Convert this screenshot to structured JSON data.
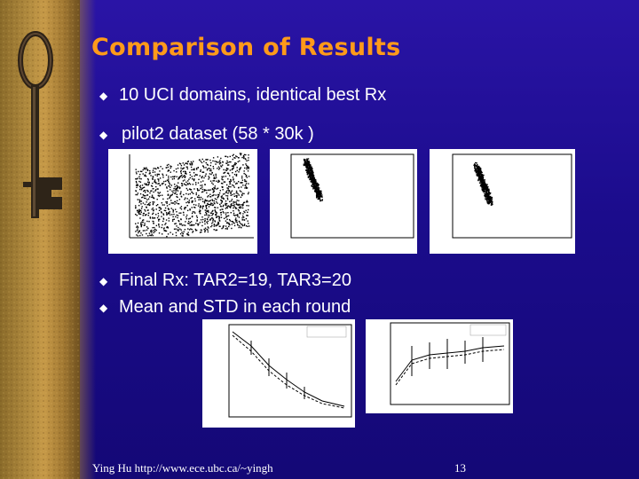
{
  "slide": {
    "title": "Comparison of Results",
    "bullets": [
      "10 UCI domains, identical best Rx",
      "pilot2 dataset (58 * 30k )",
      "Final Rx: TAR2=19, TAR3=20",
      "Mean and STD in each round"
    ],
    "bullet_glyph": "◆"
  },
  "footer": {
    "author_url": "Ying Hu http://www.ece.ubc.ca/~yingh",
    "page_number": "13"
  },
  "colors": {
    "background": "#1b0c8c",
    "title": "#ff9a1a",
    "text": "#ffffff"
  },
  "icons": [
    "bullet-diamond-icon",
    "key-image"
  ]
}
